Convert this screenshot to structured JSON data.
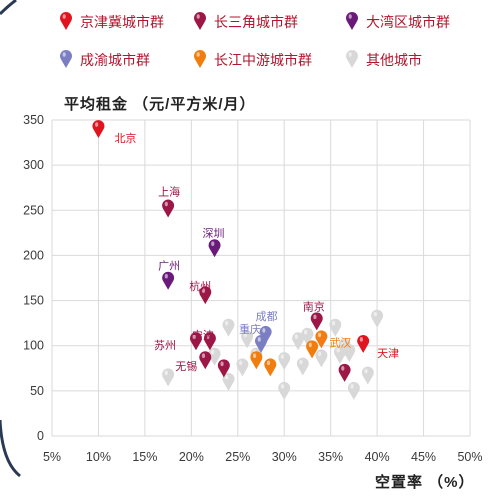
{
  "colors": {
    "beijing_tianjin": "#e0141e",
    "yangtze_delta": "#9c1646",
    "greater_bay": "#6a1b7a",
    "chengyu": "#7b7ec2",
    "middle_yangtze": "#f07d0e",
    "other": "#d8d8d8",
    "grid": "#dadada"
  },
  "chart_data": {
    "type": "scatter",
    "ylabel": "平均租金 （元/平方米/月）",
    "xlabel": "空置率 （%）",
    "xlim": [
      5,
      50
    ],
    "ylim": [
      0,
      350
    ],
    "x_ticks": [
      "5%",
      "10%",
      "15%",
      "20%",
      "25%",
      "30%",
      "35%",
      "40%",
      "45%",
      "50%"
    ],
    "y_ticks": [
      "0",
      "50",
      "100",
      "150",
      "200",
      "250",
      "300",
      "350"
    ],
    "grid": true,
    "legend_position": "top",
    "series": [
      {
        "name": "京津冀城市群",
        "color_key": "beijing_tianjin",
        "points": [
          {
            "x": 10.0,
            "y": 330,
            "label": "北京"
          },
          {
            "x": 38.5,
            "y": 92,
            "label": "天津"
          }
        ]
      },
      {
        "name": "长三角城市群",
        "color_key": "yangtze_delta",
        "points": [
          {
            "x": 17.5,
            "y": 242,
            "label": "上海"
          },
          {
            "x": 21.5,
            "y": 146,
            "label": "杭州"
          },
          {
            "x": 22.0,
            "y": 95,
            "label": "宁波"
          },
          {
            "x": 20.5,
            "y": 95,
            "label": "苏州"
          },
          {
            "x": 21.5,
            "y": 74,
            "label": "无锡"
          },
          {
            "x": 23.5,
            "y": 65,
            "label": ""
          },
          {
            "x": 33.5,
            "y": 117,
            "label": "南京"
          },
          {
            "x": 36.5,
            "y": 60,
            "label": ""
          }
        ]
      },
      {
        "name": "大湾区城市群",
        "color_key": "greater_bay",
        "points": [
          {
            "x": 22.5,
            "y": 198,
            "label": "深圳"
          },
          {
            "x": 17.5,
            "y": 162,
            "label": "广州"
          }
        ]
      },
      {
        "name": "成渝城市群",
        "color_key": "chengyu",
        "points": [
          {
            "x": 28.0,
            "y": 102,
            "label": "成都"
          },
          {
            "x": 27.5,
            "y": 92,
            "label": "重庆"
          }
        ]
      },
      {
        "name": "长江中游城市群",
        "color_key": "middle_yangtze",
        "points": [
          {
            "x": 34.0,
            "y": 97,
            "label": "武汉"
          },
          {
            "x": 33.0,
            "y": 86,
            "label": ""
          },
          {
            "x": 28.5,
            "y": 66,
            "label": ""
          },
          {
            "x": 27.0,
            "y": 74,
            "label": ""
          }
        ]
      },
      {
        "name": "其他城市",
        "color_key": "other",
        "points": [
          {
            "x": 17.5,
            "y": 55
          },
          {
            "x": 22.5,
            "y": 78
          },
          {
            "x": 24.0,
            "y": 110
          },
          {
            "x": 25.5,
            "y": 66
          },
          {
            "x": 26.0,
            "y": 97
          },
          {
            "x": 27.0,
            "y": 78
          },
          {
            "x": 24.0,
            "y": 50
          },
          {
            "x": 30.0,
            "y": 73
          },
          {
            "x": 30.0,
            "y": 40
          },
          {
            "x": 31.5,
            "y": 95
          },
          {
            "x": 32.0,
            "y": 67
          },
          {
            "x": 32.5,
            "y": 100
          },
          {
            "x": 34.0,
            "y": 76
          },
          {
            "x": 35.5,
            "y": 110
          },
          {
            "x": 36.0,
            "y": 80
          },
          {
            "x": 37.0,
            "y": 82
          },
          {
            "x": 37.5,
            "y": 40
          },
          {
            "x": 39.0,
            "y": 57
          },
          {
            "x": 40.0,
            "y": 120
          },
          {
            "x": 36.5,
            "y": 88
          }
        ]
      }
    ]
  }
}
